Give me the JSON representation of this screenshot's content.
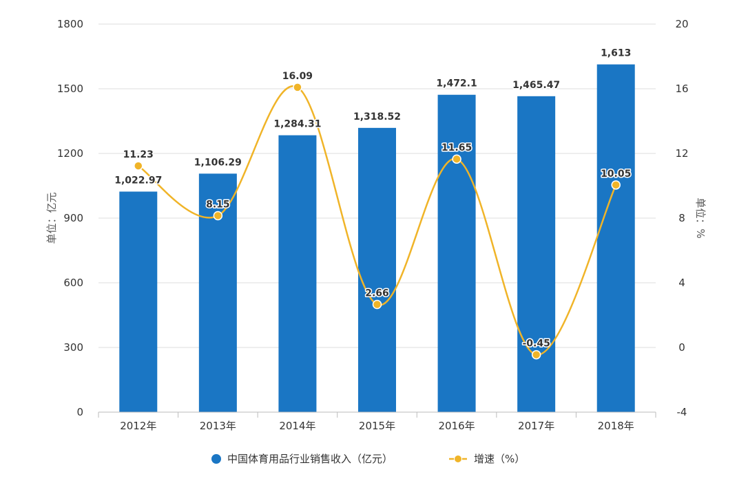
{
  "chart_data": {
    "type": "bar",
    "categories": [
      "2012年",
      "2013年",
      "2014年",
      "2015年",
      "2016年",
      "2017年",
      "2018年"
    ],
    "series": [
      {
        "name": "中国体育用品行业销售收入（亿元）",
        "type": "bar",
        "axis": "left",
        "values": [
          1022.97,
          1106.29,
          1284.31,
          1318.52,
          1472.1,
          1465.47,
          1613
        ],
        "labels": [
          "1,022.97",
          "1,106.29",
          "1,284.31",
          "1,318.52",
          "1,472.1",
          "1,465.47",
          "1,613"
        ]
      },
      {
        "name": "增速（%）",
        "type": "line",
        "smooth": true,
        "axis": "right",
        "values": [
          11.23,
          8.15,
          16.09,
          2.66,
          11.65,
          -0.45,
          10.05
        ],
        "labels": [
          "11.23",
          "8.15",
          "16.09",
          "2.66",
          "11.65",
          "-0.45",
          "10.05"
        ]
      }
    ],
    "left_axis": {
      "label": "单位：亿元",
      "ylim": [
        0,
        1800
      ],
      "ticks": [
        "0",
        "300",
        "600",
        "900",
        "1200",
        "1500",
        "1800"
      ]
    },
    "right_axis": {
      "label": "单位：%",
      "ylim": [
        -4,
        20
      ],
      "ticks": [
        "-4",
        "0",
        "4",
        "8",
        "12",
        "16",
        "20"
      ]
    },
    "grid": true,
    "legend_position": "bottom",
    "colors": {
      "bar": "#1a76c4",
      "line": "#f0b428",
      "grid": "#dddddd"
    }
  }
}
